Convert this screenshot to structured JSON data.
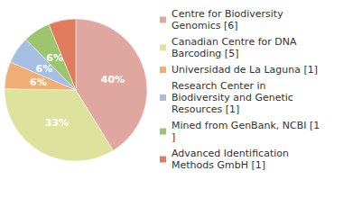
{
  "chart_data": {
    "type": "pie",
    "categories": [
      "Centre for Biodiversity Genomics [6]",
      "Canadian Centre for DNA Barcoding [5]",
      "Universidad de La Laguna [1]",
      "Research Center in Biodiversity and Genetic Resources [1]",
      "Mined from GenBank, NCBI [1]",
      "Advanced Identification Methods GmbH [1]"
    ],
    "values": [
      40,
      33,
      6,
      6,
      6,
      6
    ],
    "value_labels": [
      "40%",
      "33%",
      "6%",
      "6%",
      "6%",
      "6%"
    ],
    "colors": [
      "#e0a7a0",
      "#dde39d",
      "#f0ae74",
      "#a5bee3",
      "#9bc56f",
      "#e07c5d"
    ],
    "data_labels": true,
    "legend": "right"
  }
}
